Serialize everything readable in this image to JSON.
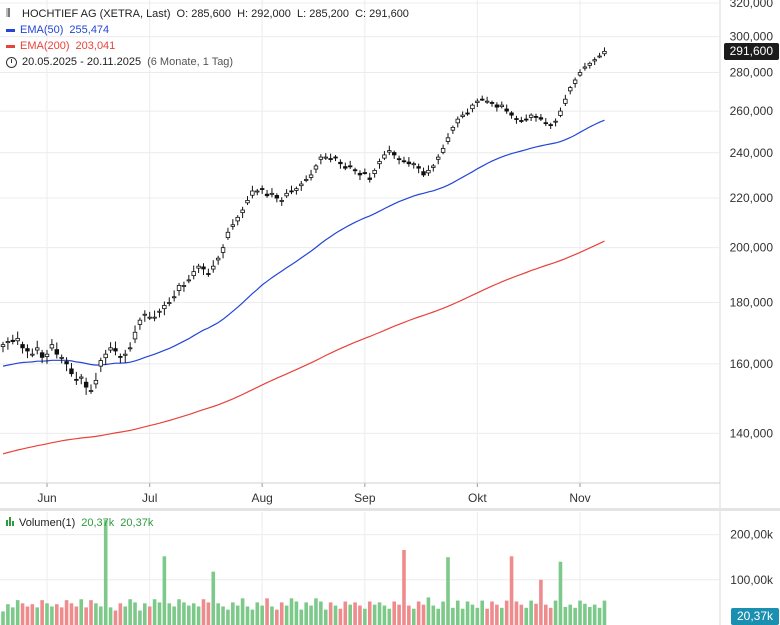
{
  "header": {
    "title": "HOCHTIEF AG (XETRA, Last)",
    "ohlc": "O: 285,600  H: 292,000  L: 285,200  C: 291,600",
    "ema50_label": "EMA(50)",
    "ema50_value": "255,474",
    "ema200_label": "EMA(200)",
    "ema200_value": "203,041",
    "range": "20.05.2025 - 20.11.2025",
    "period": "(6 Monate, 1 Tag)"
  },
  "price_badge": "291,600",
  "volume": {
    "label": "Volumen(1)",
    "value1": "20,37k",
    "value2": "20,37k",
    "badge": "20,37k"
  },
  "colors": {
    "up": "#2e9b3e",
    "down": "#e15759",
    "ema50": "#2346d6",
    "ema200": "#e8433a",
    "badge_dark": "#1c1c1c",
    "badge_teal": "#1b8fb0"
  },
  "chart_data": {
    "type": "candlestick",
    "y_ticks": [
      "320,000",
      "300,000",
      "280,000",
      "260,000",
      "240,000",
      "220,000",
      "200,000",
      "180,000",
      "160,000",
      "140,000"
    ],
    "x_labels": [
      {
        "label": "Jun",
        "i": 9
      },
      {
        "label": "Jul",
        "i": 30
      },
      {
        "label": "Aug",
        "i": 53
      },
      {
        "label": "Sep",
        "i": 74
      },
      {
        "label": "Okt",
        "i": 97
      },
      {
        "label": "Nov",
        "i": 118
      }
    ],
    "close": [
      166,
      167,
      167,
      168,
      165,
      164,
      163,
      165,
      162,
      163,
      166,
      163,
      162,
      160,
      157,
      155,
      156,
      153,
      152,
      155,
      161,
      163,
      165,
      164,
      162,
      163,
      165,
      170,
      174,
      176,
      175,
      175,
      177,
      179,
      180,
      182,
      186,
      186,
      188,
      191,
      193,
      192,
      190,
      193,
      196,
      200,
      206,
      209,
      212,
      215,
      219,
      223,
      223,
      224,
      221,
      222,
      220,
      219,
      222,
      223,
      224,
      226,
      228,
      230,
      234,
      238,
      238,
      237,
      238,
      235,
      233,
      234,
      232,
      230,
      231,
      228,
      232,
      236,
      239,
      241,
      239,
      237,
      236,
      235,
      235,
      233,
      230,
      232,
      234,
      238,
      242,
      247,
      252,
      256,
      258,
      259,
      263,
      265,
      266,
      265,
      264,
      262,
      263,
      260,
      258,
      256,
      255,
      256,
      258,
      257,
      256,
      254,
      253,
      255,
      260,
      266,
      272,
      276,
      280,
      283,
      285,
      287,
      289,
      291.6
    ],
    "ema50": [
      159.3,
      159.6,
      159.9,
      160.2,
      160.4,
      160.5,
      160.6,
      160.8,
      160.8,
      160.9,
      161.1,
      161.1,
      161.1,
      161.1,
      160.9,
      160.6,
      160.4,
      160.1,
      159.8,
      159.6,
      159.7,
      159.8,
      160.0,
      160.2,
      160.2,
      160.3,
      160.5,
      160.9,
      161.4,
      162.0,
      162.5,
      163.0,
      163.6,
      164.2,
      164.8,
      165.5,
      166.3,
      167.1,
      167.9,
      168.9,
      169.8,
      170.7,
      171.4,
      172.3,
      173.2,
      174.3,
      175.6,
      177.0,
      178.4,
      179.9,
      181.5,
      183.1,
      184.6,
      186.2,
      187.5,
      188.8,
      190.0,
      191.2,
      192.4,
      193.6,
      194.8,
      196.1,
      197.4,
      198.7,
      200.1,
      201.6,
      203.0,
      204.3,
      205.6,
      206.8,
      207.9,
      209.0,
      210.0,
      210.9,
      211.8,
      212.6,
      213.5,
      214.5,
      215.6,
      216.6,
      217.6,
      218.5,
      219.3,
      220.1,
      220.9,
      221.5,
      222.0,
      222.6,
      223.1,
      223.8,
      224.6,
      225.5,
      226.6,
      227.8,
      229.0,
      230.2,
      231.4,
      232.7,
      233.9,
      235.1,
      236.2,
      237.2,
      238.1,
      238.9,
      239.6,
      240.2,
      240.8,
      241.4,
      242.1,
      242.7,
      243.2,
      243.7,
      244.1,
      244.6,
      245.2,
      246.1,
      247.1,
      248.3,
      249.6,
      250.9,
      252.2,
      253.4,
      254.5,
      255.5
    ]
  }
}
